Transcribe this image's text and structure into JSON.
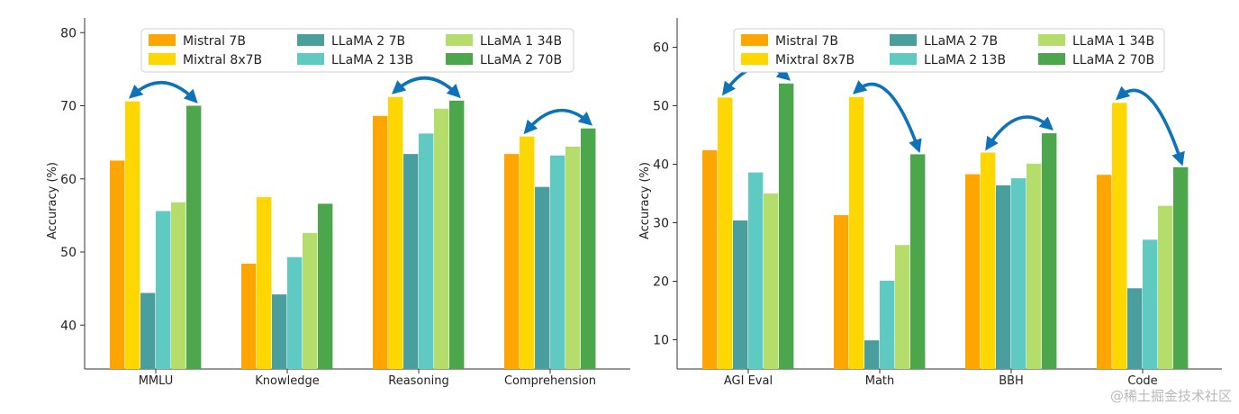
{
  "watermark": "@稀土掘金技术社区",
  "colors": {
    "Mistral 7B": "#ffa500",
    "Mixtral 8x7B": "#ffd700",
    "LLaMA 2 7B": "#4a9e9e",
    "LLaMA 2 13B": "#5ecac2",
    "LLaMA 1 34B": "#b5dd6c",
    "LLaMA 2 70B": "#4ca64c",
    "arrow": "#0e72b8"
  },
  "chart_data": [
    {
      "type": "bar",
      "ylabel": "Accuracy (%)",
      "xlabel": "",
      "ylim": [
        34,
        82
      ],
      "yticks": [
        40,
        50,
        60,
        70,
        80
      ],
      "grid": false,
      "legend_position": "top",
      "categories": [
        "MMLU",
        "Knowledge",
        "Reasoning",
        "Comprehension"
      ],
      "series": [
        {
          "name": "Mistral 7B",
          "values": [
            62.5,
            48.4,
            68.6,
            63.4
          ]
        },
        {
          "name": "Mixtral 8x7B",
          "values": [
            70.6,
            57.5,
            71.2,
            65.8
          ]
        },
        {
          "name": "LLaMA 2 7B",
          "values": [
            44.4,
            44.2,
            63.4,
            58.9
          ]
        },
        {
          "name": "LLaMA 2 13B",
          "values": [
            55.6,
            49.3,
            66.2,
            63.2
          ]
        },
        {
          "name": "LLaMA 1 34B",
          "values": [
            56.8,
            52.6,
            69.6,
            64.4
          ]
        },
        {
          "name": "LLaMA 2 70B",
          "values": [
            70.0,
            56.6,
            70.7,
            66.9
          ]
        }
      ],
      "arrows": [
        {
          "category": "MMLU",
          "from_series": "Mixtral 8x7B",
          "to_series": "LLaMA 2 70B"
        },
        {
          "category": "Reasoning",
          "from_series": "Mixtral 8x7B",
          "to_series": "LLaMA 2 70B"
        },
        {
          "category": "Comprehension",
          "from_series": "Mixtral 8x7B",
          "to_series": "LLaMA 2 70B"
        }
      ]
    },
    {
      "type": "bar",
      "ylabel": "Accuracy (%)",
      "xlabel": "",
      "ylim": [
        5,
        65
      ],
      "yticks": [
        10,
        20,
        30,
        40,
        50,
        60
      ],
      "grid": false,
      "legend_position": "top",
      "categories": [
        "AGI Eval",
        "Math",
        "BBH",
        "Code"
      ],
      "series": [
        {
          "name": "Mistral 7B",
          "values": [
            42.4,
            31.3,
            38.3,
            38.2
          ]
        },
        {
          "name": "Mixtral 8x7B",
          "values": [
            51.4,
            51.5,
            42.0,
            50.5
          ]
        },
        {
          "name": "LLaMA 2 7B",
          "values": [
            30.4,
            9.9,
            36.4,
            18.8
          ]
        },
        {
          "name": "LLaMA 2 13B",
          "values": [
            38.6,
            20.1,
            37.6,
            27.1
          ]
        },
        {
          "name": "LLaMA 1 34B",
          "values": [
            35.0,
            26.2,
            40.1,
            32.9
          ]
        },
        {
          "name": "LLaMA 2 70B",
          "values": [
            53.8,
            41.7,
            45.3,
            39.5
          ]
        }
      ],
      "arrows": [
        {
          "category": "AGI Eval",
          "from_series": "Mixtral 8x7B",
          "to_series": "LLaMA 2 70B"
        },
        {
          "category": "Math",
          "from_series": "Mixtral 8x7B",
          "to_series": "LLaMA 2 70B"
        },
        {
          "category": "BBH",
          "from_series": "Mixtral 8x7B",
          "to_series": "LLaMA 2 70B"
        },
        {
          "category": "Code",
          "from_series": "Mixtral 8x7B",
          "to_series": "LLaMA 2 70B"
        }
      ]
    }
  ]
}
